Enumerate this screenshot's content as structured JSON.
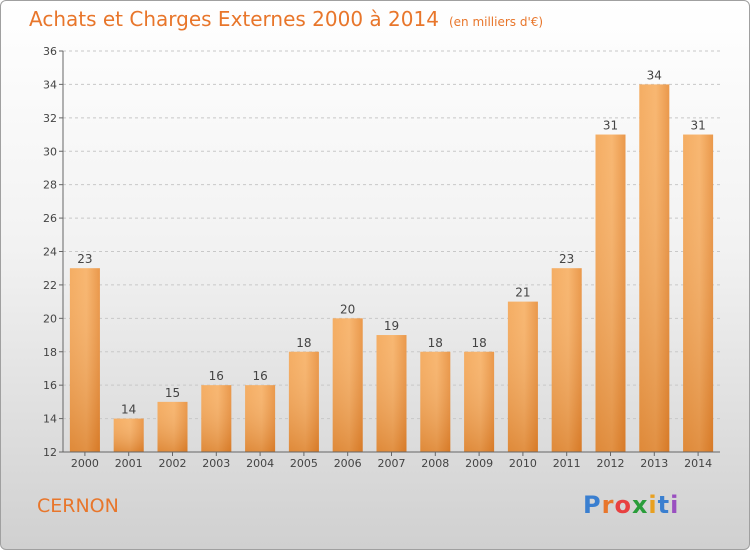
{
  "title": "Achats et Charges Externes 2000 à 2014",
  "subtitle": "(en milliers d'€)",
  "city": "CERNON",
  "logo": {
    "text": "Proxiti",
    "colors": [
      "#3a7fd0",
      "#e8762b",
      "#e84040",
      "#2a9d3a",
      "#e8a020",
      "#3a7fd0",
      "#9a4fc0"
    ]
  },
  "colors": {
    "accent": "#e8762b",
    "bar_light": "#f7a955",
    "bar_dark": "#d9721c"
  },
  "chart_data": {
    "type": "bar",
    "categories": [
      "2000",
      "2001",
      "2002",
      "2003",
      "2004",
      "2005",
      "2006",
      "2007",
      "2008",
      "2009",
      "2010",
      "2011",
      "2012",
      "2013",
      "2014"
    ],
    "values": [
      23,
      14,
      15,
      16,
      16,
      18,
      20,
      19,
      18,
      18,
      21,
      23,
      31,
      34,
      31
    ],
    "title": "Achats et Charges Externes 2000 à 2014",
    "subtitle": "(en milliers d'€)",
    "xlabel": "",
    "ylabel": "",
    "ylim": [
      12,
      36
    ],
    "yticks": [
      12,
      14,
      16,
      18,
      20,
      22,
      24,
      26,
      28,
      30,
      32,
      34,
      36
    ],
    "grid": true,
    "data_labels": true
  }
}
